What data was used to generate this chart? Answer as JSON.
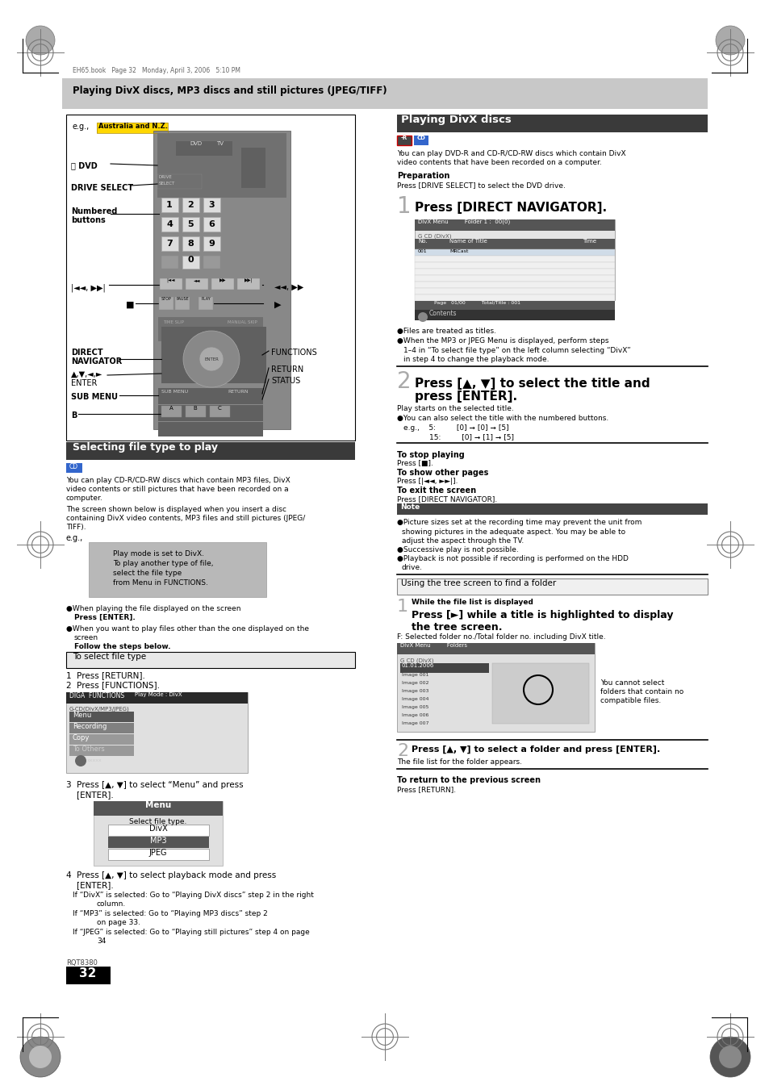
{
  "page_bg": "#ffffff",
  "header_bg": "#c8c8c8",
  "dark_bg": "#3a3a3a",
  "page_number": "32",
  "model": "RQT8380",
  "watermark_text": "EH65.book   Page 32   Monday, April 3, 2006   5:10 PM",
  "main_header": "Playing DivX discs, MP3 discs and still pictures (JPEG/TIFF)"
}
